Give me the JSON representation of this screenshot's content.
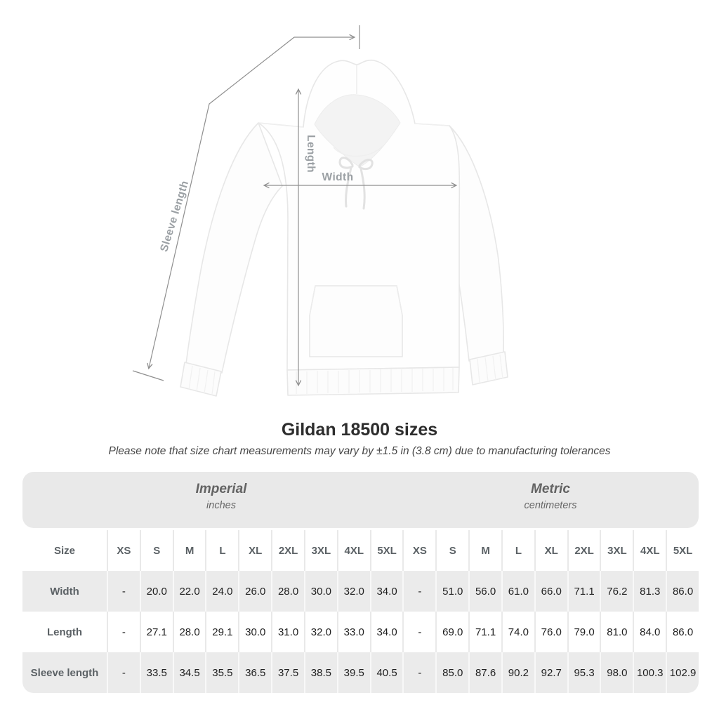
{
  "title": "Gildan 18500 sizes",
  "subtitle": "Please note that size chart measurements may vary by ±1.5 in (3.8 cm) due to manufacturing tolerances",
  "figure": {
    "labels": {
      "sleeve": "Sleeve length",
      "length": "Length",
      "width": "Width"
    },
    "line_color": "#8f8f8f",
    "label_color": "#9ba0a4"
  },
  "table": {
    "groups": [
      {
        "label": "Imperial",
        "unit": "inches"
      },
      {
        "label": "Metric",
        "unit": "centimeters"
      }
    ],
    "size_col_header": "Size",
    "sizes": [
      "XS",
      "S",
      "M",
      "L",
      "XL",
      "2XL",
      "3XL",
      "4XL",
      "5XL"
    ],
    "rows": [
      {
        "label": "Width",
        "imperial": [
          "-",
          "20.0",
          "22.0",
          "24.0",
          "26.0",
          "28.0",
          "30.0",
          "32.0",
          "34.0"
        ],
        "metric": [
          "-",
          "51.0",
          "56.0",
          "61.0",
          "66.0",
          "71.1",
          "76.2",
          "81.3",
          "86.0"
        ]
      },
      {
        "label": "Length",
        "imperial": [
          "-",
          "27.1",
          "28.0",
          "29.1",
          "30.0",
          "31.0",
          "32.0",
          "33.0",
          "34.0"
        ],
        "metric": [
          "-",
          "69.0",
          "71.1",
          "74.0",
          "76.0",
          "79.0",
          "81.0",
          "84.0",
          "86.0"
        ]
      },
      {
        "label": "Sleeve length",
        "imperial": [
          "-",
          "33.5",
          "34.5",
          "35.5",
          "36.5",
          "37.5",
          "38.5",
          "39.5",
          "40.5"
        ],
        "metric": [
          "-",
          "85.0",
          "87.6",
          "90.2",
          "92.7",
          "95.3",
          "98.0",
          "100.3",
          "102.9"
        ]
      }
    ],
    "colors": {
      "band": "#e9e9e9",
      "row_alt": "#ebebeb",
      "header_text": "#5b6165",
      "value_text": "#1f1f1f"
    }
  }
}
